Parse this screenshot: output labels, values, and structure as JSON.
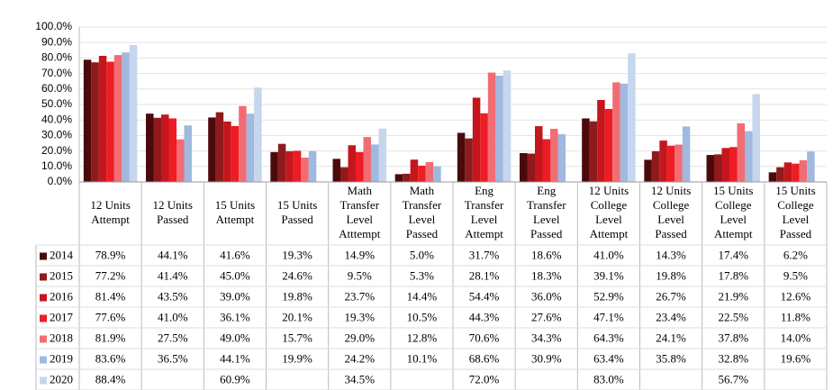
{
  "chart_data": {
    "type": "bar",
    "categories": [
      [
        "12 Units",
        "Attempt"
      ],
      [
        "12 Units",
        "Passed"
      ],
      [
        "15 Units",
        "Attempt"
      ],
      [
        "15 Units",
        "Passed"
      ],
      [
        "Math",
        "Transfer",
        "Level",
        "Atttempt"
      ],
      [
        "Math",
        "Transfer",
        "Level",
        "Passed"
      ],
      [
        "Eng",
        "Transfer",
        "Level",
        "Attempt"
      ],
      [
        "Eng",
        "Transfer",
        "Level",
        "Passed"
      ],
      [
        "12 Units",
        "College",
        "Level",
        "Attempt"
      ],
      [
        "12 Units",
        "College",
        "Level",
        "Passed"
      ],
      [
        "15 Units",
        "College",
        "Level",
        "Attempt"
      ],
      [
        "15 Units",
        "College",
        "Level",
        "Passed"
      ]
    ],
    "series": [
      {
        "name": "2014",
        "color": "#4a0a0c",
        "values": [
          78.9,
          44.1,
          41.6,
          19.3,
          14.9,
          5.0,
          31.7,
          18.6,
          41.0,
          14.3,
          17.4,
          6.2
        ],
        "value_labels": [
          "78.9%",
          "44.1%",
          "41.6%",
          "19.3%",
          "14.9%",
          "5.0%",
          "31.7%",
          "18.6%",
          "41.0%",
          "14.3%",
          "17.4%",
          "6.2%"
        ]
      },
      {
        "name": "2015",
        "color": "#8e1a1c",
        "values": [
          77.2,
          41.4,
          45.0,
          24.6,
          9.5,
          5.3,
          28.1,
          18.3,
          39.1,
          19.8,
          17.8,
          9.5
        ],
        "value_labels": [
          "77.2%",
          "41.4%",
          "45.0%",
          "24.6%",
          "9.5%",
          "5.3%",
          "28.1%",
          "18.3%",
          "39.1%",
          "19.8%",
          "17.8%",
          "9.5%"
        ]
      },
      {
        "name": "2016",
        "color": "#c4161c",
        "values": [
          81.4,
          43.5,
          39.0,
          19.8,
          23.7,
          14.4,
          54.4,
          36.0,
          52.9,
          26.7,
          21.9,
          12.6
        ],
        "value_labels": [
          "81.4%",
          "43.5%",
          "39.0%",
          "19.8%",
          "23.7%",
          "14.4%",
          "54.4%",
          "36.0%",
          "52.9%",
          "26.7%",
          "21.9%",
          "12.6%"
        ]
      },
      {
        "name": "2017",
        "color": "#ee1c25",
        "values": [
          77.6,
          41.0,
          36.1,
          20.1,
          19.3,
          10.5,
          44.3,
          27.6,
          47.1,
          23.4,
          22.5,
          11.8
        ],
        "value_labels": [
          "77.6%",
          "41.0%",
          "36.1%",
          "20.1%",
          "19.3%",
          "10.5%",
          "44.3%",
          "27.6%",
          "47.1%",
          "23.4%",
          "22.5%",
          "11.8%"
        ]
      },
      {
        "name": "2018",
        "color": "#f26c74",
        "values": [
          81.9,
          27.5,
          49.0,
          15.7,
          29.0,
          12.8,
          70.6,
          34.3,
          64.3,
          24.1,
          37.8,
          14.0
        ],
        "value_labels": [
          "81.9%",
          "27.5%",
          "49.0%",
          "15.7%",
          "29.0%",
          "12.8%",
          "70.6%",
          "34.3%",
          "64.3%",
          "24.1%",
          "37.8%",
          "14.0%"
        ]
      },
      {
        "name": "2019",
        "color": "#9fb9df",
        "values": [
          83.6,
          36.5,
          44.1,
          19.9,
          24.2,
          10.1,
          68.6,
          30.9,
          63.4,
          35.8,
          32.8,
          19.6
        ],
        "value_labels": [
          "83.6%",
          "36.5%",
          "44.1%",
          "19.9%",
          "24.2%",
          "10.1%",
          "68.6%",
          "30.9%",
          "63.4%",
          "35.8%",
          "32.8%",
          "19.6%"
        ]
      },
      {
        "name": "2020",
        "color": "#c5d6ee",
        "values": [
          88.4,
          null,
          60.9,
          null,
          34.5,
          null,
          72.0,
          null,
          83.0,
          null,
          56.7,
          null
        ],
        "value_labels": [
          "88.4%",
          null,
          "60.9%",
          null,
          "34.5%",
          null,
          "72.0%",
          null,
          "83.0%",
          null,
          "56.7%",
          null
        ]
      }
    ],
    "ylim": [
      0,
      100
    ],
    "yticks": [
      {
        "value": 0,
        "label": "0.0%"
      },
      {
        "value": 10,
        "label": "10.0%"
      },
      {
        "value": 20,
        "label": "20.0%"
      },
      {
        "value": 30,
        "label": "30.0%"
      },
      {
        "value": 40,
        "label": "40.0%"
      },
      {
        "value": 50,
        "label": "50.0%"
      },
      {
        "value": 60,
        "label": "60.0%"
      },
      {
        "value": 70,
        "label": "70.0%"
      },
      {
        "value": 80,
        "label": "80.0%"
      },
      {
        "value": 90,
        "label": "90.0%"
      },
      {
        "value": 100,
        "label": "100.0%"
      }
    ],
    "grid": true
  }
}
